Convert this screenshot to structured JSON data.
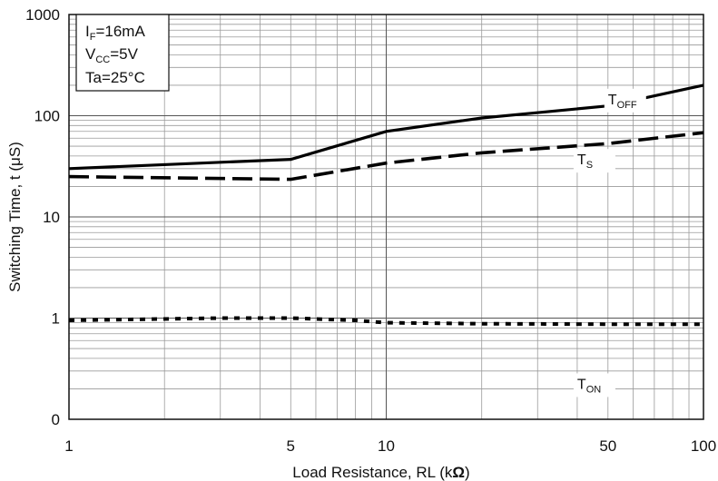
{
  "chart_data": {
    "type": "line",
    "title": "",
    "xlabel": "Load Resistance, RL (kΩ)",
    "xlabel_main": "Load Resistance, RL (k",
    "xlabel_unit": "Ω",
    "xlabel_close": ")",
    "ylabel": "Switching Time, t (μS)",
    "x_scale": "log",
    "xlim": [
      1,
      100
    ],
    "ylim_decades": [
      0,
      1,
      10,
      100,
      1000
    ],
    "x_ticks": [
      {
        "value": 1,
        "label": "1"
      },
      {
        "value": 5,
        "label": "5"
      },
      {
        "value": 10,
        "label": "10"
      },
      {
        "value": 50,
        "label": "50"
      },
      {
        "value": 100,
        "label": "100"
      }
    ],
    "y_ticks": [
      "0",
      "1",
      "10",
      "100",
      "1000"
    ],
    "grid": true,
    "conditions": [
      {
        "main": "I",
        "sub": "F",
        "rest": "=16mA"
      },
      {
        "main": "V",
        "sub": "CC",
        "rest": "=5V"
      },
      {
        "main": "Ta=25°C",
        "sub": "",
        "rest": ""
      }
    ],
    "series": [
      {
        "name": "TOFF",
        "label_main": "T",
        "label_sub": "OFF",
        "style": "solid",
        "points": [
          [
            1,
            30
          ],
          [
            5,
            37
          ],
          [
            10,
            70
          ],
          [
            20,
            95
          ],
          [
            50,
            125
          ],
          [
            100,
            200
          ]
        ]
      },
      {
        "name": "TS",
        "label_main": "T",
        "label_sub": "S",
        "style": "dashed",
        "points": [
          [
            1,
            25
          ],
          [
            5,
            23.5
          ],
          [
            10,
            34
          ],
          [
            20,
            43
          ],
          [
            50,
            53
          ],
          [
            100,
            68
          ]
        ]
      },
      {
        "name": "TON",
        "label_main": "T",
        "label_sub": "ON",
        "style": "dotted",
        "points": [
          [
            1,
            0.95
          ],
          [
            3,
            1.0
          ],
          [
            5,
            1.0
          ],
          [
            8,
            0.95
          ],
          [
            10,
            0.9
          ],
          [
            20,
            0.88
          ],
          [
            50,
            0.87
          ],
          [
            100,
            0.87
          ]
        ]
      }
    ]
  }
}
